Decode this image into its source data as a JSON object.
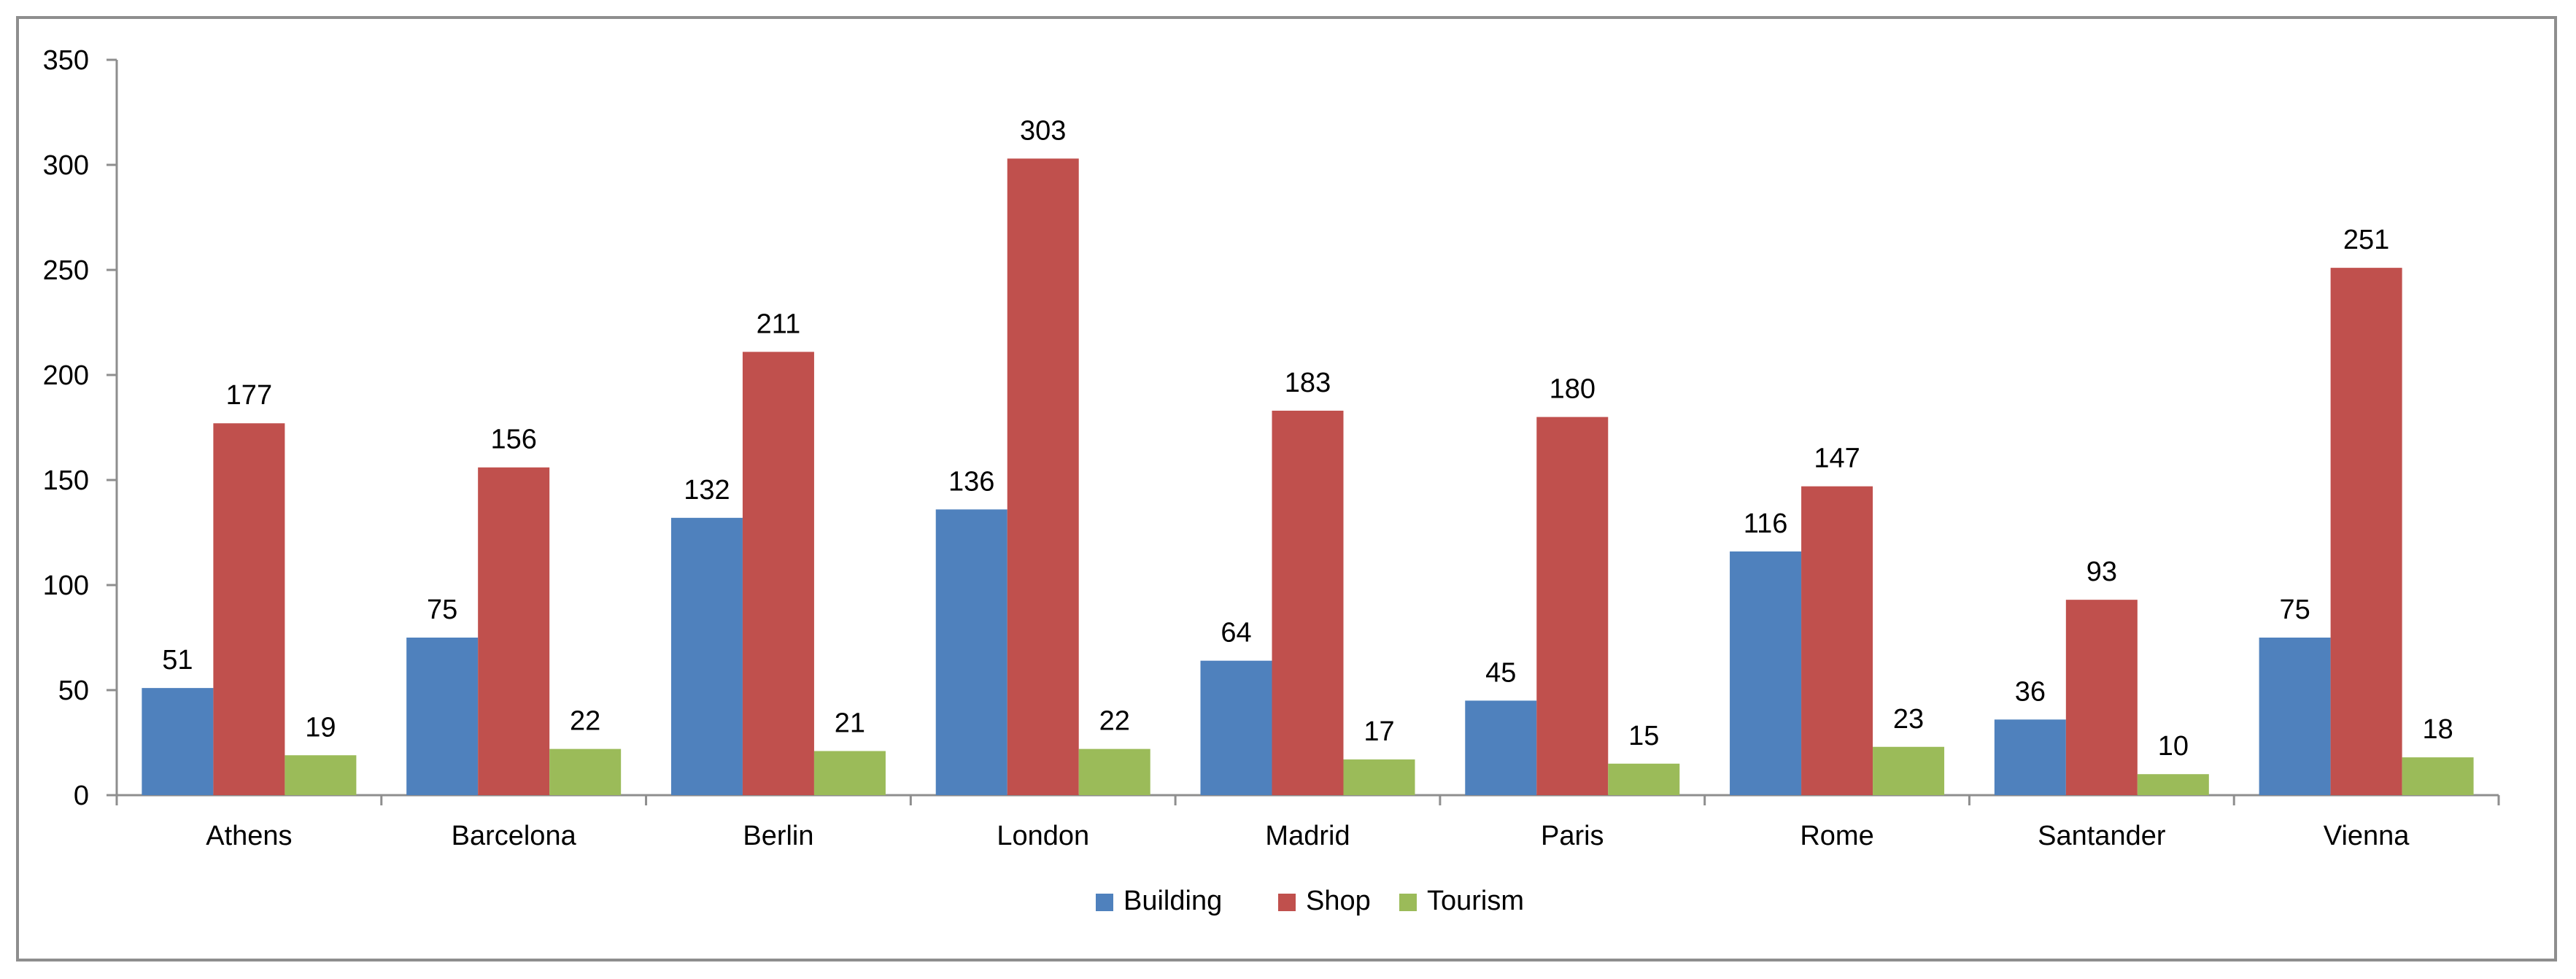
{
  "chart_data": {
    "type": "bar",
    "categories": [
      "Athens",
      "Barcelona",
      "Berlin",
      "London",
      "Madrid",
      "Paris",
      "Rome",
      "Santander",
      "Vienna"
    ],
    "series": [
      {
        "name": "Building",
        "color": "#4f81bd",
        "values": [
          51,
          75,
          132,
          136,
          64,
          45,
          116,
          36,
          75
        ]
      },
      {
        "name": "Shop",
        "color": "#c0504d",
        "values": [
          177,
          156,
          211,
          303,
          183,
          180,
          147,
          93,
          251
        ]
      },
      {
        "name": "Tourism",
        "color": "#9bbb59",
        "values": [
          19,
          22,
          21,
          22,
          17,
          15,
          23,
          10,
          18
        ]
      }
    ],
    "ylim": [
      0,
      350
    ],
    "yticks": [
      0,
      50,
      100,
      150,
      200,
      250,
      300,
      350
    ],
    "grid": false,
    "data_labels": true,
    "legend_position": "bottom"
  }
}
